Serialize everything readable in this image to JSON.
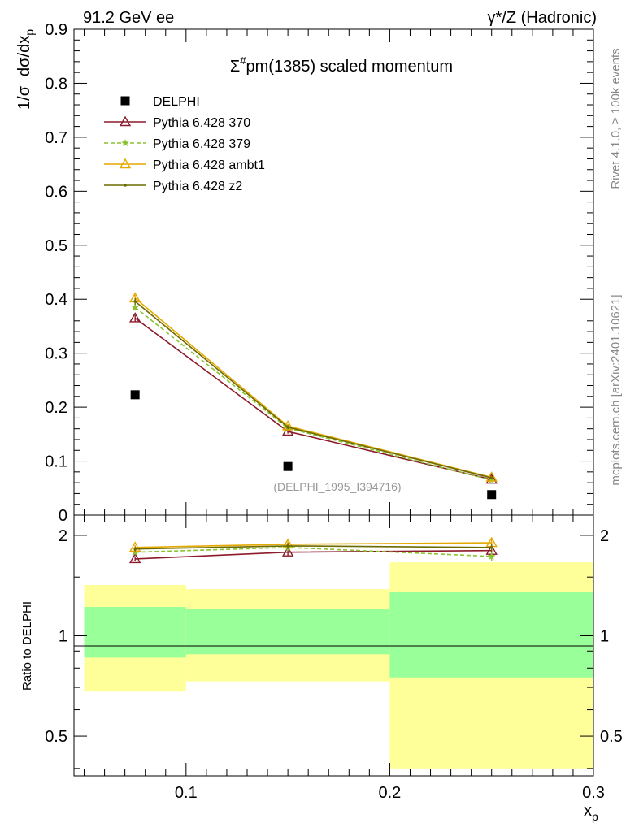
{
  "header": {
    "energy_label": "91.2 GeV ee",
    "process_label": "γ*/Z (Hadronic)",
    "side_rivet": "Rivet 4.1.0, ≥ 100k events",
    "side_mcplots": "mcplots.cern.ch [arXiv:2401.10621]"
  },
  "chart_data": [
    {
      "type": "line",
      "title": "Σ#pm(1385) scaled momentum",
      "title_sym": "Σ",
      "title_sup": "#",
      "title_rest": "pm(1385) scaled momentum",
      "ylabel": "1/σ  dσ/dxp",
      "ylabel_a": "1/σ",
      "ylabel_b": "dσ/dx",
      "ylabel_sub": "p",
      "watermark": "(DELPHI_1995_I394716)",
      "xlim": [
        0.045,
        0.3
      ],
      "ylim": [
        0,
        0.9
      ],
      "y_ticks": [
        "0",
        "0.1",
        "0.2",
        "0.3",
        "0.4",
        "0.5",
        "0.6",
        "0.7",
        "0.8",
        "0.9"
      ],
      "x": [
        0.075,
        0.15,
        0.25
      ],
      "data": {
        "name": "DELPHI",
        "values": [
          0.223,
          0.09,
          0.038
        ],
        "color": "#000000"
      },
      "series": [
        {
          "name": "Pythia 6.428 370",
          "values": [
            0.365,
            0.155,
            0.066
          ],
          "errors": [
            0.006,
            0.004,
            0.002
          ],
          "color": "#8b1a2a",
          "marker": "triangle-open",
          "dashed": false
        },
        {
          "name": "Pythia 6.428 379",
          "values": [
            0.385,
            0.161,
            0.065
          ],
          "errors": [
            0.006,
            0.004,
            0.002
          ],
          "color": "#8ac230",
          "marker": "star",
          "dashed": true
        },
        {
          "name": "Pythia 6.428 ambt1",
          "values": [
            0.402,
            0.165,
            0.07
          ],
          "errors": [
            0.006,
            0.004,
            0.002
          ],
          "color": "#e5a800",
          "marker": "triangle-open",
          "dashed": false
        },
        {
          "name": "Pythia 6.428 z2",
          "values": [
            0.396,
            0.163,
            0.069
          ],
          "errors": [
            0.006,
            0.004,
            0.002
          ],
          "color": "#6b6b00",
          "marker": "dot",
          "dashed": false
        }
      ]
    },
    {
      "type": "line",
      "ylabel": "Ratio to DELPHI",
      "xlabel": "xp",
      "xlabel_main": "x",
      "xlabel_sub": "p",
      "ylim": [
        0.38,
        2.3
      ],
      "y_ticks": [
        "0.5",
        "1",
        "2"
      ],
      "y_tick_values": [
        0.5,
        1,
        2
      ],
      "x_ticks": [
        "0.1",
        "0.2",
        "0.3"
      ],
      "x_tick_values": [
        0.1,
        0.2,
        0.3
      ],
      "bins": [
        {
          "lo": 0.05,
          "hi": 0.1,
          "green": [
            0.86,
            1.22
          ],
          "yellow": [
            0.68,
            1.42
          ]
        },
        {
          "lo": 0.1,
          "hi": 0.2,
          "green": [
            0.88,
            1.2
          ],
          "yellow": [
            0.73,
            1.38
          ]
        },
        {
          "lo": 0.2,
          "hi": 0.3,
          "green": [
            0.75,
            1.35
          ],
          "yellow": [
            0.4,
            1.66
          ]
        }
      ],
      "band_colors": {
        "green": "#99ff99",
        "yellow": "#ffff99"
      },
      "series": [
        {
          "name": "Pythia 6.428 370",
          "values": [
            1.7,
            1.78,
            1.8
          ],
          "errors": [
            0.03,
            0.04,
            0.05
          ]
        },
        {
          "name": "Pythia 6.428 379",
          "values": [
            1.78,
            1.84,
            1.73
          ],
          "errors": [
            0.03,
            0.04,
            0.05
          ]
        },
        {
          "name": "Pythia 6.428 ambt1",
          "values": [
            1.84,
            1.88,
            1.9
          ],
          "errors": [
            0.03,
            0.04,
            0.05
          ]
        },
        {
          "name": "Pythia 6.428 z2",
          "values": [
            1.82,
            1.86,
            1.84
          ],
          "errors": [
            0.03,
            0.04,
            0.05
          ]
        }
      ]
    }
  ]
}
